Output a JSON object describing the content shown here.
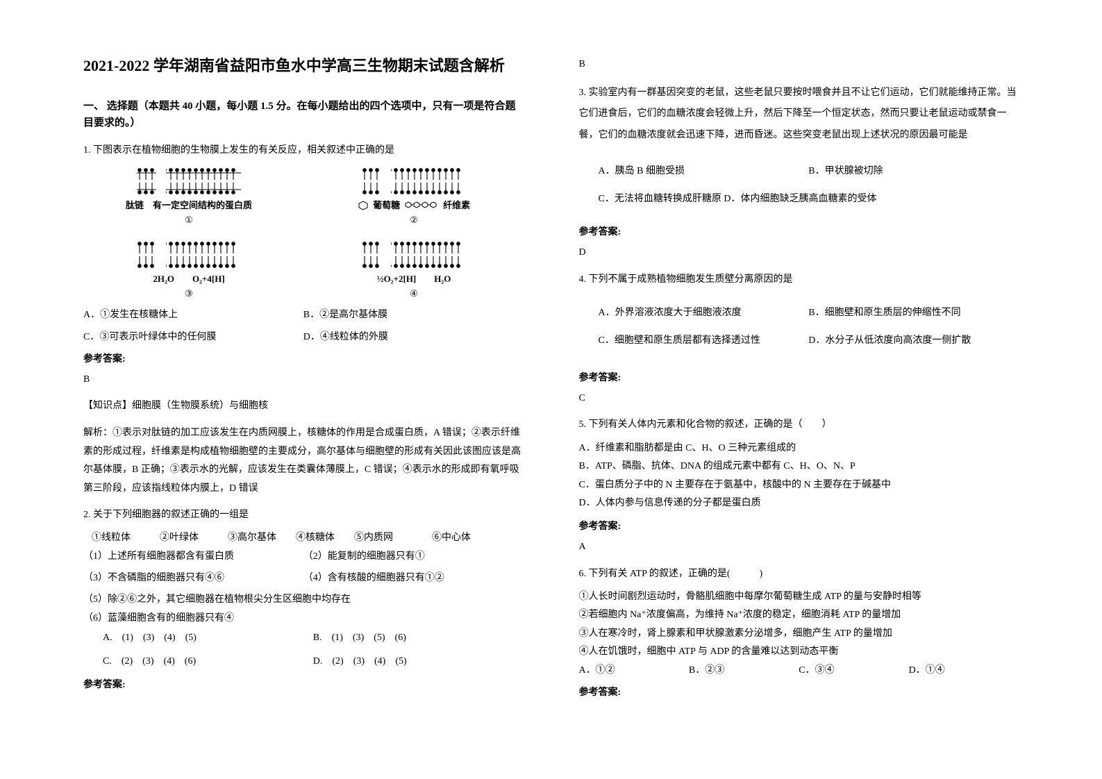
{
  "title": "2021-2022 学年湖南省益阳市鱼水中学高三生物期末试题含解析",
  "section1": {
    "header": "一、 选择题（本题共 40 小题，每小题 1.5 分。在每小题给出的四个选项中，只有一项是符合题目要求的。）"
  },
  "q1": {
    "stem": "1. 下图表示在植物细胞的生物膜上发生的有关反应，相关叙述中正确的是",
    "d1_left": "肽链",
    "d1_right": "有一定空间结构的蛋白质",
    "d1_num": "①",
    "d2_left": "葡萄糖",
    "d2_right": "纤维素",
    "d2_num": "②",
    "d3_left": "2H₂O",
    "d3_right": "O₂+4[H]",
    "d3_num": "③",
    "d4_left": "½O₂+2[H]",
    "d4_right": "H₂O",
    "d4_num": "④",
    "optA": "A．①发生在核糖体上",
    "optB": "B．②是高尔基体膜",
    "optC": "C．③可表示叶绿体中的任何膜",
    "optD": "D．④线粒体的外膜",
    "ansLabel": "参考答案:",
    "ans": "B",
    "kp": "【知识点】细胞膜（生物膜系统）与细胞核",
    "explain": "解析：①表示对肽链的加工应该发生在内质网膜上，核糖体的作用是合成蛋白质，A 错误；②表示纤维素的形成过程，纤维素是构成植物细胞壁的主要成分，高尔基体与细胞壁的形成有关因此该图应该是高尔基体膜，B 正确；③表示水的光解，应该发生在类囊体薄膜上，C 错误；④表示水的形成即有氧呼吸第三阶段，应该指线粒体内膜上，D 错误"
  },
  "q2": {
    "stem": "2. 关于下列细胞器的叙述正确的一组是",
    "items": "①线粒体　　　②叶绿体　　　③高尔基体　　④核糖体　　⑤内质网　　　　⑥中心体",
    "s1l": "（1）上述所有细胞器都含有蛋白质",
    "s1r": "（2）能复制的细胞器只有①",
    "s2l": "（3）不含磷脂的细胞器只有④⑥",
    "s2r": "（4）含有核酸的细胞器只有①②",
    "s3": "（5）除②⑥之外，其它细胞器在植物根尖分生区细胞中均存在",
    "s4": "（6）蓝藻细胞含有的细胞器只有④",
    "optAline1l": "A.　(1)　(3)　(4)　(5)",
    "optAline1r": "B.　(1)　(3)　(5)　(6)",
    "optAline2l": "C.　(2)　(3)　(4)　(6)",
    "optAline2r": "D.　(2)　(3)　(4)　(5)",
    "ansLabel": "参考答案:",
    "ans": "B"
  },
  "q3": {
    "stem": "3. 实验室内有一群基因突变的老鼠，这些老鼠只要按时喂食并且不让它们运动，它们就能维持正常。当它们进食后，它们的血糖浓度会轻微上升，然后下降至一个恒定状态，然而只要让老鼠运动或禁食一餐，它们的血糖浓度就会迅速下降，进而昏迷。这些突变老鼠出现上述状况的原因最可能是",
    "optA": "A．胰岛 B 细胞受损",
    "optB": "B．甲状腺被切除",
    "optC": "C．无法将血糖转换成肝糖原  D．体内细胞缺乏胰高血糖素的受体",
    "ansLabel": "参考答案:",
    "ans": "D"
  },
  "q4": {
    "stem": "4. 下列不属于成熟植物细胞发生质壁分离原因的是",
    "optA": "A．外界溶液浓度大于细胞液浓度",
    "optB": "B．细胞壁和原生质层的伸缩性不同",
    "optC": "C．细胞壁和原生质层都有选择透过性",
    "optD": "D．水分子从低浓度向高浓度一侧扩散",
    "ansLabel": "参考答案:",
    "ans": "C"
  },
  "q5": {
    "stem": "5. 下列有关人体内元素和化合物的叙述，正确的是（　　）",
    "optA": "A．纤维素和脂肪都是由 C、H、O 三种元素组成的",
    "optB": "B．ATP、磷脂、抗体、DNA 的组成元素中都有 C、H、O、N、P",
    "optC": "C．蛋白质分子中的 N 主要存在于氨基中，核酸中的 N 主要存在于碱基中",
    "optD": "D．人体内参与信息传递的分子都是蛋白质",
    "ansLabel": "参考答案:",
    "ans": "A"
  },
  "q6": {
    "stem": "6. 下列有关 ATP 的叙述，正确的是(　　　)",
    "s1": "①人长时间剧烈运动时，骨骼肌细胞中每摩尔葡萄糖生成 ATP 的量与安静时相等",
    "s2": "②若细胞内 Na⁺浓度偏高，为维持 Na⁺浓度的稳定，细胞消耗 ATP 的量增加",
    "s3": "③人在寒冷时，肾上腺素和甲状腺激素分泌增多，细胞产生 ATP 的量增加",
    "s4": "④人在饥饿时，细胞中 ATP 与 ADP 的含量难以达到动态平衡",
    "optA": "A．①②",
    "optB": "B．②③",
    "optC": "C．③④",
    "optD": "D．①④",
    "ansLabel": "参考答案:"
  },
  "colors": {
    "text": "#000000",
    "bg": "#ffffff",
    "diagram_stroke": "#000000"
  }
}
